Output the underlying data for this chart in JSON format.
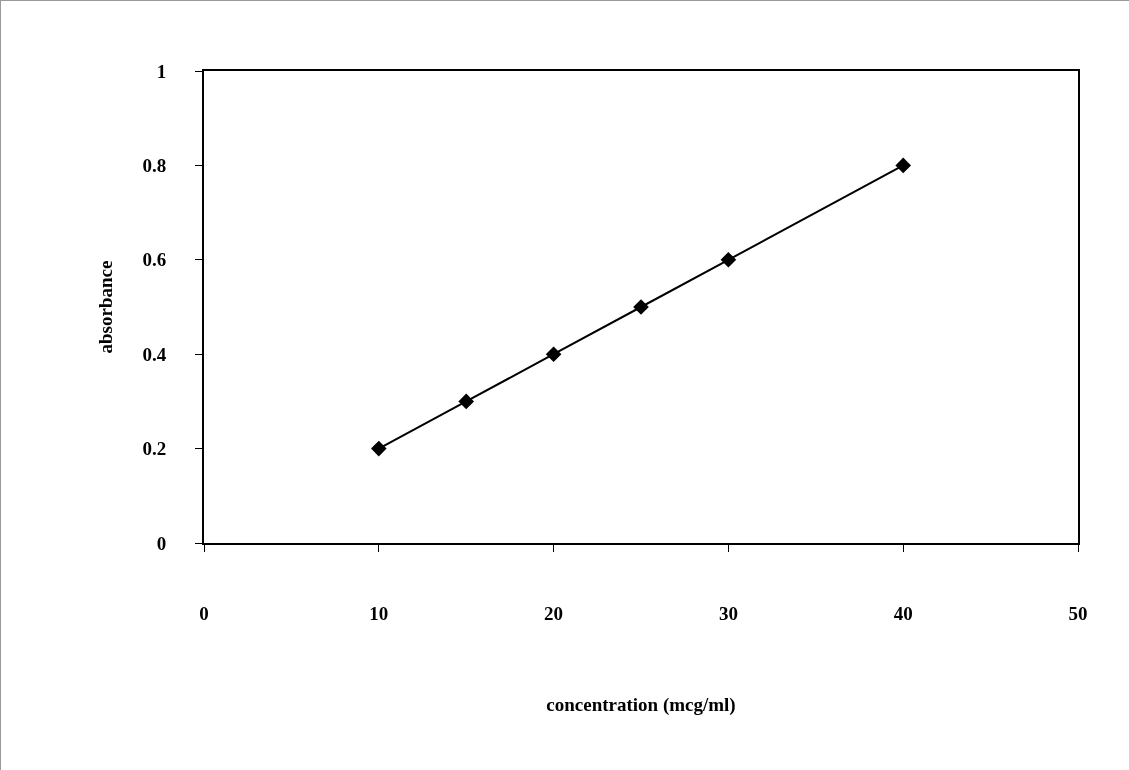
{
  "chart_data": {
    "type": "line",
    "xlabel": "concentration (mcg/ml)",
    "ylabel": "absorbance",
    "x": [
      10,
      15,
      20,
      25,
      30,
      40
    ],
    "series": [
      {
        "color": "#000000",
        "values": [
          0.2,
          0.3,
          0.4,
          0.5,
          0.6,
          0.8
        ]
      }
    ],
    "xlim": [
      0,
      50
    ],
    "xticks": [
      0,
      10,
      20,
      30,
      40,
      50
    ],
    "ylim": [
      0,
      1
    ],
    "yticks": [
      0,
      0.2,
      0.4,
      0.6,
      0.8,
      1
    ],
    "grid": false,
    "legend": false,
    "marker": "diamond",
    "line_style": "solid"
  }
}
